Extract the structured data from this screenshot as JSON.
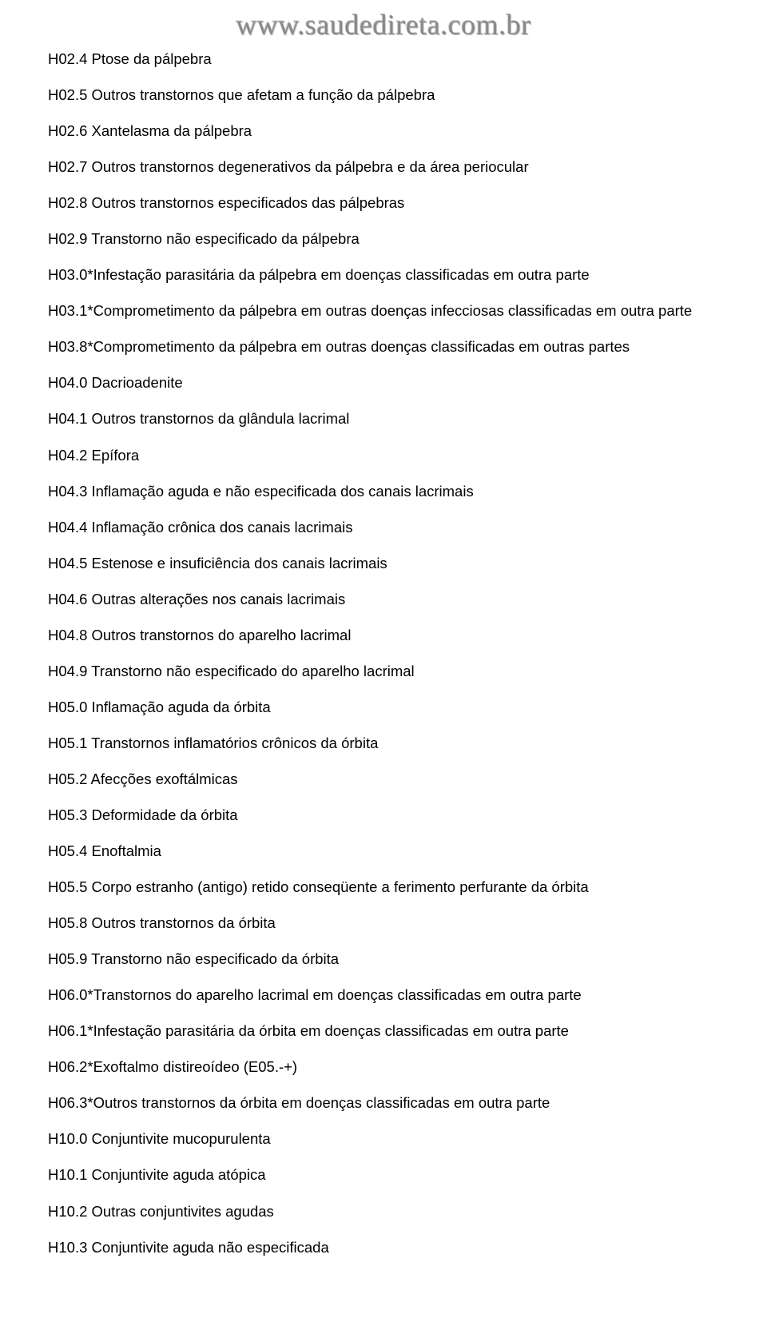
{
  "watermark": "www.saudedireta.com.br",
  "entries": [
    "H02.4 Ptose da pálpebra",
    "H02.5 Outros transtornos que afetam a função da pálpebra",
    "H02.6 Xantelasma da pálpebra",
    "H02.7 Outros transtornos degenerativos da pálpebra e da área periocular",
    "H02.8 Outros transtornos especificados das pálpebras",
    "H02.9 Transtorno não especificado da pálpebra",
    "H03.0*Infestação parasitária da pálpebra em doenças classificadas em outra parte",
    "H03.1*Comprometimento da pálpebra em outras doenças infecciosas classificadas em outra parte",
    "H03.8*Comprometimento da pálpebra em outras doenças classificadas em outras partes",
    "H04.0 Dacrioadenite",
    "H04.1 Outros transtornos da glândula lacrimal",
    "H04.2 Epífora",
    "H04.3 Inflamação aguda e não especificada dos canais lacrimais",
    "H04.4 Inflamação crônica dos canais lacrimais",
    "H04.5 Estenose e insuficiência dos canais lacrimais",
    "H04.6 Outras alterações nos canais lacrimais",
    "H04.8 Outros transtornos do aparelho lacrimal",
    "H04.9 Transtorno não especificado do aparelho lacrimal",
    "H05.0 Inflamação aguda da órbita",
    "H05.1 Transtornos inflamatórios crônicos da órbita",
    "H05.2 Afecções exoftálmicas",
    "H05.3 Deformidade da órbita",
    "H05.4 Enoftalmia",
    "H05.5 Corpo estranho (antigo) retido conseqüente a ferimento perfurante da órbita",
    "H05.8 Outros transtornos da órbita",
    "H05.9 Transtorno não especificado da órbita",
    "H06.0*Transtornos do aparelho lacrimal em doenças classificadas em outra parte",
    "H06.1*Infestação parasitária da órbita em doenças classificadas em outra parte",
    "H06.2*Exoftalmo distireoídeo (E05.-+)",
    "H06.3*Outros transtornos da órbita em doenças classificadas em outra parte",
    "H10.0 Conjuntivite mucopurulenta",
    "H10.1 Conjuntivite aguda atópica",
    "H10.2 Outras conjuntivites agudas",
    "H10.3 Conjuntivite aguda não especificada"
  ],
  "styling": {
    "background_color": "#ffffff",
    "text_color": "#000000",
    "watermark_color": "#888888",
    "font_family": "Arial, Helvetica, sans-serif",
    "watermark_font_family": "Times New Roman, Times, serif",
    "entry_font_size": 18.5,
    "watermark_font_size": 36,
    "entry_spacing": 21
  }
}
